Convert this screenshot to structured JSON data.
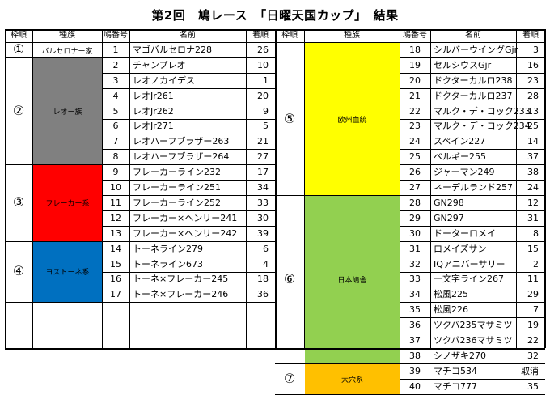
{
  "title": "第2回　鳩レース　「日曜天国カップ」　結果",
  "headers": {
    "group": "枠順",
    "breed": "種族",
    "no": "鳩番号",
    "name": "名前",
    "rank": "着順"
  },
  "left": {
    "groups": [
      {
        "mark": "①",
        "breed": "バルセロナー家",
        "color": "#ffffff",
        "rows": [
          {
            "no": "1",
            "name": "マゴバルセロナ228",
            "rank": "26"
          }
        ]
      },
      {
        "mark": "②",
        "breed": "レオー族",
        "color": "#808080",
        "rows": [
          {
            "no": "2",
            "name": "チャンプレオ",
            "rank": "10"
          },
          {
            "no": "3",
            "name": "レオノカイデス",
            "rank": "1"
          },
          {
            "no": "4",
            "name": "レオJr261",
            "rank": "20"
          },
          {
            "no": "5",
            "name": "レオJr262",
            "rank": "9"
          },
          {
            "no": "6",
            "name": "レオJr271",
            "rank": "5"
          },
          {
            "no": "7",
            "name": "レオハーフブラザー263",
            "rank": "21"
          },
          {
            "no": "8",
            "name": "レオハーフブラザー264",
            "rank": "27"
          }
        ]
      },
      {
        "mark": "③",
        "breed": "フレーカー系",
        "color": "#ff0000",
        "rows": [
          {
            "no": "9",
            "name": "フレーカーライン232",
            "rank": "17"
          },
          {
            "no": "10",
            "name": "フレーカーライン251",
            "rank": "34"
          },
          {
            "no": "11",
            "name": "フレーカーライン252",
            "rank": "33"
          },
          {
            "no": "12",
            "name": "フレーカー×ヘンリー241",
            "rank": "30"
          },
          {
            "no": "13",
            "name": "フレーカー×ヘンリー242",
            "rank": "39"
          }
        ]
      },
      {
        "mark": "④",
        "breed": "ヨストーネ系",
        "color": "#0070c0",
        "rows": [
          {
            "no": "14",
            "name": "トーネライン279",
            "rank": "6"
          },
          {
            "no": "15",
            "name": "トーネライン673",
            "rank": "4"
          },
          {
            "no": "16",
            "name": "トーネ×フレーカー245",
            "rank": "18"
          },
          {
            "no": "17",
            "name": "トーネ×フレーカー246",
            "rank": "36"
          }
        ]
      }
    ]
  },
  "right": {
    "groups": [
      {
        "mark": "⑤",
        "breed": "欧州血統",
        "color": "#ffff00",
        "rows": [
          {
            "no": "18",
            "name": "シルバーウイングGjr",
            "rank": "3"
          },
          {
            "no": "19",
            "name": "セルシウスGjr",
            "rank": "16"
          },
          {
            "no": "20",
            "name": "ドクターカルロ238",
            "rank": "23"
          },
          {
            "no": "21",
            "name": "ドクターカルロ237",
            "rank": "28"
          },
          {
            "no": "22",
            "name": "マルク・デ・コック233",
            "rank": "13"
          },
          {
            "no": "23",
            "name": "マルク・デ・コック234",
            "rank": "25"
          },
          {
            "no": "24",
            "name": "スペイン227",
            "rank": "14"
          },
          {
            "no": "25",
            "name": "ベルギー255",
            "rank": "37"
          },
          {
            "no": "26",
            "name": "ジャーマン249",
            "rank": "38"
          },
          {
            "no": "27",
            "name": "ネーデルランド257",
            "rank": "24"
          }
        ]
      },
      {
        "mark": "⑥",
        "breed": "日本鳩舎",
        "color": "#92d050",
        "rows": [
          {
            "no": "28",
            "name": "GN298",
            "rank": "12"
          },
          {
            "no": "29",
            "name": "GN297",
            "rank": "31"
          },
          {
            "no": "30",
            "name": "ドーターロメイ",
            "rank": "8"
          },
          {
            "no": "31",
            "name": "ロメイズサン",
            "rank": "15"
          },
          {
            "no": "32",
            "name": "IQアニバーサリー",
            "rank": "2"
          },
          {
            "no": "33",
            "name": "一文字ライン267",
            "rank": "11"
          },
          {
            "no": "34",
            "name": "松風225",
            "rank": "29"
          },
          {
            "no": "35",
            "name": "松風226",
            "rank": "7"
          },
          {
            "no": "36",
            "name": "ツクバ235マサミツ",
            "rank": "19"
          },
          {
            "no": "37",
            "name": "ツクバ236マサミツ",
            "rank": "22"
          },
          {
            "no": "38",
            "name": "シノザキ270",
            "rank": "32"
          }
        ]
      },
      {
        "mark": "⑦",
        "breed": "大穴系",
        "color": "#ffc000",
        "rows": [
          {
            "no": "39",
            "name": "マチコ534",
            "rank": "取消"
          },
          {
            "no": "40",
            "name": "マチコ777",
            "rank": "35"
          }
        ]
      }
    ]
  }
}
